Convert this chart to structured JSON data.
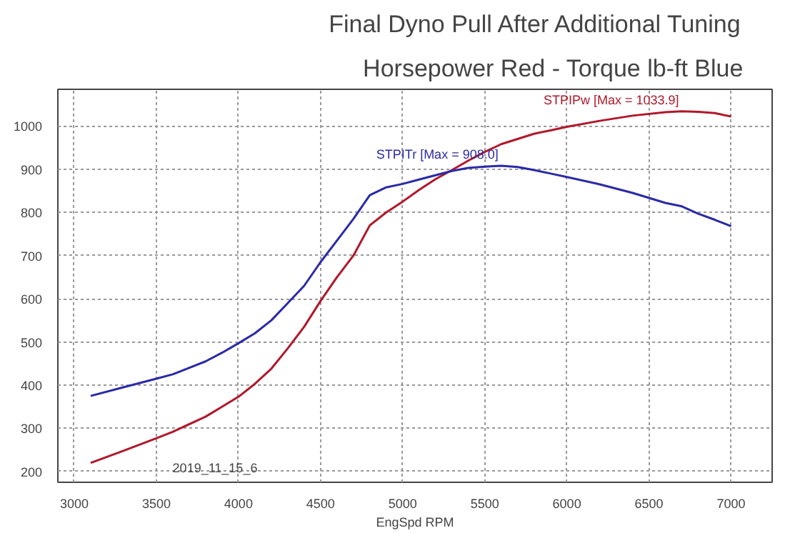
{
  "chart_data": {
    "type": "line",
    "title": "Final Dyno Pull After Additional Tuning",
    "subtitle": "Horsepower Red - Torque lb-ft Blue",
    "xlabel": "EngSpd RPM",
    "annotations": [
      "2019_11_15_6"
    ],
    "xlim": [
      2900,
      7250
    ],
    "ylim": [
      175,
      1085
    ],
    "xticks": [
      3000,
      3500,
      4000,
      4500,
      5000,
      5500,
      6000,
      6500,
      7000
    ],
    "yticks": [
      200,
      300,
      400,
      500,
      600,
      700,
      800,
      900,
      1000
    ],
    "grid": true,
    "legend": false,
    "line_style": "solid",
    "marker": "none",
    "x": [
      3100,
      3300,
      3500,
      3600,
      3800,
      3900,
      4000,
      4100,
      4200,
      4300,
      4400,
      4500,
      4600,
      4700,
      4800,
      4900,
      5000,
      5100,
      5200,
      5300,
      5400,
      5500,
      5600,
      5700,
      5800,
      5900,
      6000,
      6200,
      6400,
      6600,
      6700,
      6800,
      6900,
      7000
    ],
    "series": [
      {
        "name": "STPIPw [Max = 1033.9]",
        "color": "#b0182a",
        "values": [
          220,
          248,
          277,
          292,
          327,
          350,
          373,
          403,
          438,
          485,
          535,
          595,
          650,
          700,
          770,
          800,
          825,
          852,
          877,
          898,
          920,
          940,
          958,
          970,
          982,
          990,
          998,
          1012,
          1024,
          1032,
          1034,
          1033,
          1030,
          1022
        ]
      },
      {
        "name": "STPITr [Max = 908.0]",
        "color": "#2a2aa8",
        "values": [
          375,
          395,
          415,
          425,
          455,
          475,
          497,
          520,
          550,
          590,
          630,
          685,
          735,
          785,
          840,
          858,
          866,
          876,
          886,
          896,
          903,
          906,
          908,
          905,
          898,
          890,
          882,
          865,
          845,
          822,
          814,
          797,
          783,
          768
        ]
      }
    ]
  }
}
